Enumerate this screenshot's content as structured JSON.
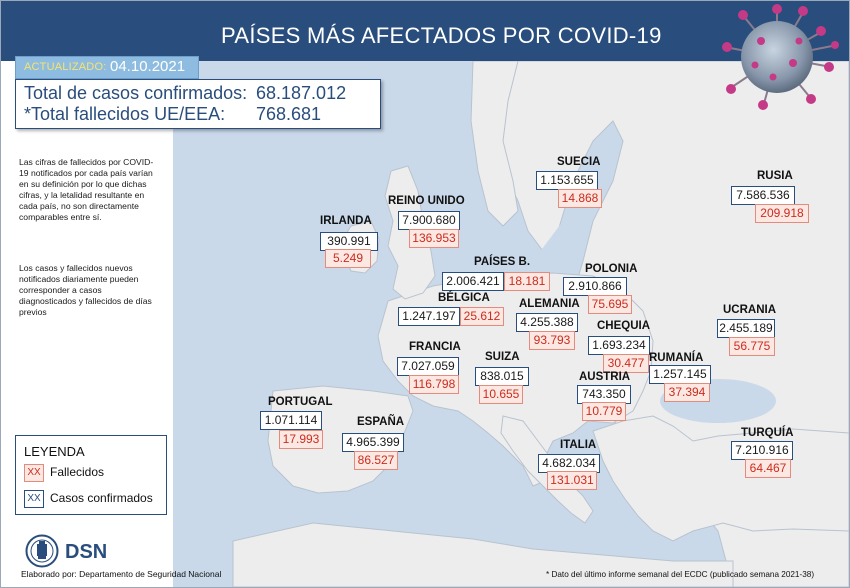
{
  "header": {
    "title": "PAÍSES MÁS AFECTADOS POR COVID-19"
  },
  "updated": {
    "label": "ACTUALIZADO:",
    "date": "04.10.2021"
  },
  "totals": {
    "confirmed_label": "Total de casos confirmados:",
    "confirmed_value": "68.187.012",
    "deaths_label": "*Total fallecidos UE/EEA:",
    "deaths_value": "768.681"
  },
  "notes": {
    "p1": "Las cifras de fallecidos por COVID-19 notificados por cada país varían en su definición por lo que dichas cifras, y la letalidad resultante en cada país, no son directamente comparables entre sí.",
    "p2": "Los casos y fallecidos nuevos notificados diariamente pueden corresponder a casos diagnosticados y fallecidos de días previos"
  },
  "countries": {
    "irlanda": {
      "name": "IRLANDA",
      "cases": "390.991",
      "deaths": "5.249"
    },
    "reino_unido": {
      "name": "REINO UNIDO",
      "cases": "7.900.680",
      "deaths": "136.953"
    },
    "paises_b": {
      "name": "PAÍSES B.",
      "cases": "2.006.421",
      "deaths": "18.181"
    },
    "belgica": {
      "name": "BÉLGICA",
      "cases": "1.247.197",
      "deaths": "25.612"
    },
    "francia": {
      "name": "FRANCIA",
      "cases": "7.027.059",
      "deaths": "116.798"
    },
    "portugal": {
      "name": "PORTUGAL",
      "cases": "1.071.114",
      "deaths": "17.993"
    },
    "espana": {
      "name": "ESPAÑA",
      "cases": "4.965.399",
      "deaths": "86.527"
    },
    "suiza": {
      "name": "SUIZA",
      "cases": "838.015",
      "deaths": "10.655"
    },
    "alemania": {
      "name": "ALEMANIA",
      "cases": "4.255.388",
      "deaths": "93.793"
    },
    "suecia": {
      "name": "SUECIA",
      "cases": "1.153.655",
      "deaths": "14.868"
    },
    "polonia": {
      "name": "POLONIA",
      "cases": "2.910.866",
      "deaths": "75.695"
    },
    "chequia": {
      "name": "CHEQUIA",
      "cases": "1.693.234",
      "deaths": "30.477"
    },
    "austria": {
      "name": "AUSTRIA",
      "cases": "743.350",
      "deaths": "10.779"
    },
    "rumania": {
      "name": "RUMANÍA",
      "cases": "1.257.145",
      "deaths": "37.394"
    },
    "italia": {
      "name": "ITALIA",
      "cases": "4.682.034",
      "deaths": "131.031"
    },
    "rusia": {
      "name": "RUSIA",
      "cases": "7.586.536",
      "deaths": "209.918"
    },
    "ucrania": {
      "name": "UCRANIA",
      "cases": "2.455.189",
      "deaths": "56.775"
    },
    "turquia": {
      "name": "TURQUÍA",
      "cases": "7.210.916",
      "deaths": "64.467"
    }
  },
  "legend": {
    "title": "LEYENDA",
    "swatch": "XX",
    "deaths_label": "Fallecidos",
    "cases_label": "Casos confirmados"
  },
  "logo": {
    "text": "DSN"
  },
  "footer": {
    "credit": "Elaborado por: Departamento de Seguridad Nacional",
    "source": "* Dato del último informe semanal del ECDC (publicado semana 2021-38)"
  },
  "colors": {
    "header_bg": "#294d7c",
    "sea": "#c9d9ea",
    "land": "#ededed",
    "deaths_red": "#cc2c1e",
    "deaths_bg": "#fbe8e3",
    "cases_border": "#294d7c"
  }
}
